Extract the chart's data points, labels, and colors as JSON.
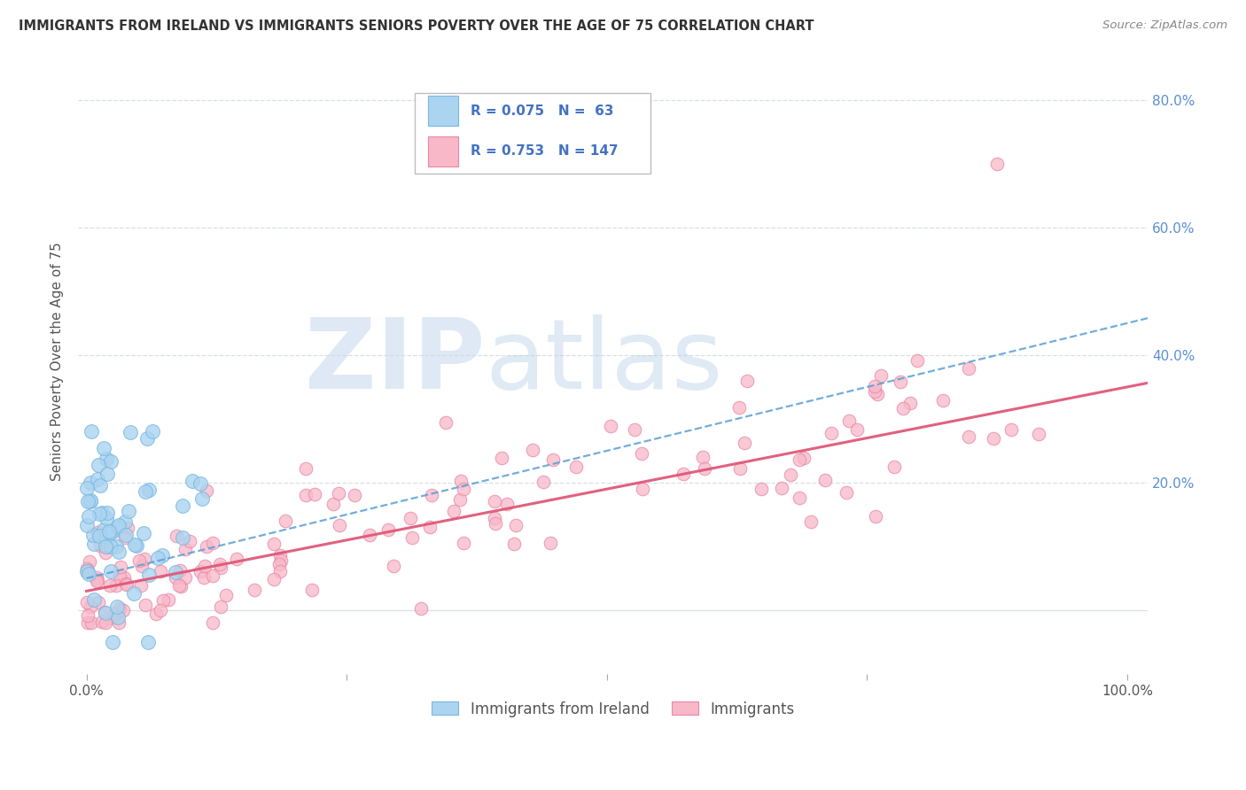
{
  "title": "IMMIGRANTS FROM IRELAND VS IMMIGRANTS SENIORS POVERTY OVER THE AGE OF 75 CORRELATION CHART",
  "source": "Source: ZipAtlas.com",
  "ylabel": "Seniors Poverty Over the Age of 75",
  "watermark_part1": "ZIP",
  "watermark_part2": "atlas",
  "series": [
    {
      "name": "Immigrants from Ireland",
      "R": 0.075,
      "N": 63,
      "color": "#aad4f0",
      "edge_color": "#7ab8e0",
      "line_color": "#5a9fd4",
      "line_style": "--"
    },
    {
      "name": "Immigrants",
      "R": 0.753,
      "N": 147,
      "color": "#f8b8c8",
      "edge_color": "#e888a8",
      "line_color": "#e05878",
      "line_style": "-"
    }
  ],
  "legend_text_color": "#4472c4",
  "background_color": "#ffffff",
  "grid_color": "#d0d8e0",
  "right_tick_color": "#5a8fd4",
  "title_color": "#333333",
  "source_color": "#888888",
  "ylabel_color": "#555555"
}
